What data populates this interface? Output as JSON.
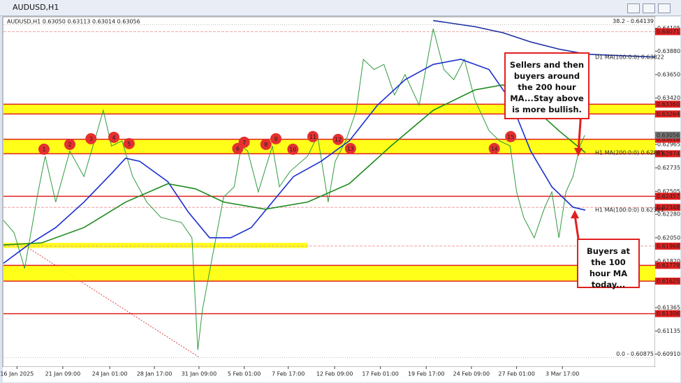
{
  "window_title": "AUDUSD,H1",
  "chart_data": {
    "type": "line",
    "info": "AUDUSD,H1  0.63050 0.63113 0.63014 0.63056",
    "xlim": [
      0,
      111
    ],
    "ylim": [
      0.6079,
      0.6419
    ],
    "xticks": [
      {
        "value": 2.3,
        "label": "16 Jan 2025"
      },
      {
        "value": 10.1,
        "label": "21 Jan 09:00"
      },
      {
        "value": 18.1,
        "label": "24 Jan 01:00"
      },
      {
        "value": 25.7,
        "label": "28 Jan 17:00"
      },
      {
        "value": 33.3,
        "label": "31 Jan 09:00"
      },
      {
        "value": 41,
        "label": "5 Feb 01:00"
      },
      {
        "value": 48.5,
        "label": "7 Feb 17:00"
      },
      {
        "value": 56.4,
        "label": "12 Feb 09:00"
      },
      {
        "value": 64.2,
        "label": "17 Feb 01:00"
      },
      {
        "value": 72,
        "label": "19 Feb 17:00"
      },
      {
        "value": 79.7,
        "label": "24 Feb 09:00"
      },
      {
        "value": 87.4,
        "label": "27 Feb 01:00"
      },
      {
        "value": 95.2,
        "label": "3 Mar 17:00"
      }
    ],
    "yticks": [
      {
        "value": 0.64105,
        "label": "0.64105"
      },
      {
        "value": 0.6388,
        "label": "0.63880"
      },
      {
        "value": 0.6365,
        "label": "0.63650"
      },
      {
        "value": 0.6342,
        "label": "0.63420"
      },
      {
        "value": 0.62965,
        "label": "0.62965"
      },
      {
        "value": 0.62735,
        "label": "0.62735"
      },
      {
        "value": 0.62505,
        "label": "0.62505"
      },
      {
        "value": 0.6228,
        "label": "0.62280"
      },
      {
        "value": 0.6205,
        "label": "0.62050"
      },
      {
        "value": 0.6182,
        "label": "0.61820"
      },
      {
        "value": 0.61365,
        "label": "0.61365"
      },
      {
        "value": 0.61135,
        "label": "0.61135"
      },
      {
        "value": 0.6091,
        "label": "0.60910"
      }
    ],
    "series": [
      {
        "color": "#2f9a3e",
        "x": [
          0,
          1.8,
          3.6,
          5.9,
          7.1,
          8.9,
          11.3,
          13.7,
          15.5,
          17.0,
          18.4,
          20.2,
          22.0,
          24.4,
          26.8,
          30.3,
          32.1,
          33.1,
          33.9,
          35.7,
          37.5,
          39.3,
          40.5,
          41.6,
          43.4,
          45.8,
          47.0,
          48.8,
          51.8,
          53.5,
          55.3,
          56.5,
          58.3,
          60.1,
          61.3,
          63.1,
          64.8,
          66.6,
          68.4,
          70.8,
          73.2,
          75.0,
          76.7,
          78.5,
          80.3,
          82.7,
          84.5,
          86.3,
          87.4,
          88.6,
          90.4,
          92.2,
          93.4,
          94.6,
          95.8,
          97.0,
          98.2,
          99.0
        ],
        "values": [
          0.6222,
          0.621,
          0.6175,
          0.625,
          0.6285,
          0.624,
          0.629,
          0.6265,
          0.63,
          0.633,
          0.6295,
          0.63,
          0.6265,
          0.624,
          0.6225,
          0.622,
          0.6205,
          0.6095,
          0.6135,
          0.619,
          0.6245,
          0.6255,
          0.6295,
          0.629,
          0.625,
          0.6295,
          0.6255,
          0.627,
          0.6285,
          0.6305,
          0.624,
          0.628,
          0.63,
          0.633,
          0.638,
          0.637,
          0.6375,
          0.6345,
          0.6365,
          0.6335,
          0.641,
          0.637,
          0.636,
          0.638,
          0.634,
          0.631,
          0.63,
          0.6295,
          0.625,
          0.6225,
          0.6205,
          0.6235,
          0.625,
          0.6205,
          0.625,
          0.6265,
          0.6295,
          0.63056
        ]
      },
      {
        "name": "H1 MA(100:0:0) 0.62321",
        "color": "#1a2fd0",
        "x": [
          0,
          4.2,
          8.9,
          13.7,
          18.4,
          20.8,
          23.2,
          28.0,
          31.5,
          35.1,
          38.7,
          42.2,
          45.8,
          49.4,
          54.1,
          58.9,
          63.7,
          68.4,
          73.2,
          77.9,
          82.7,
          86.3,
          89.8,
          93.4,
          97.0,
          99.1
        ],
        "values": [
          0.618,
          0.6198,
          0.6215,
          0.624,
          0.6268,
          0.6283,
          0.628,
          0.626,
          0.623,
          0.6205,
          0.6205,
          0.6215,
          0.624,
          0.6265,
          0.628,
          0.63,
          0.6335,
          0.636,
          0.6375,
          0.638,
          0.637,
          0.634,
          0.629,
          0.6255,
          0.6235,
          0.62321
        ]
      },
      {
        "name": "H1 MA(200:0:0) 0.62885",
        "color": "#1d8a1d",
        "x": [
          0,
          6.5,
          13.7,
          20.8,
          28.0,
          32.7,
          37.5,
          44.6,
          51.8,
          58.9,
          66.0,
          73.2,
          80.3,
          85.1,
          89.8,
          94.6,
          99.1
        ],
        "values": [
          0.6198,
          0.62,
          0.6215,
          0.624,
          0.6258,
          0.6253,
          0.624,
          0.6233,
          0.624,
          0.6258,
          0.6295,
          0.633,
          0.635,
          0.6355,
          0.6335,
          0.631,
          0.62885
        ]
      },
      {
        "name": "D1 MA(100:0:0) 0.63822",
        "color": "#1a2fa0",
        "x": [
          73.2,
          80.3,
          85.1,
          89.8,
          94.6,
          99.3,
          111
        ],
        "values": [
          0.6418,
          0.6412,
          0.6406,
          0.6397,
          0.639,
          0.6385,
          0.63822
        ]
      }
    ],
    "zones": [
      {
        "low": 0.63264,
        "high": 0.6336,
        "color": "#ffff00"
      },
      {
        "low": 0.62874,
        "high": 0.63016,
        "color": "#ffff00"
      },
      {
        "low": 0.61625,
        "high": 0.61779,
        "color": "#ffff00"
      },
      {
        "low": 0.6195,
        "high": 0.62,
        "x_end": 51.8,
        "color": "#ffff00"
      }
    ],
    "levels": [
      {
        "value": 0.64071,
        "label": "0.64071",
        "style": "dashed"
      },
      {
        "value": 0.6336,
        "label": "0.63360",
        "style": "solid"
      },
      {
        "value": 0.63264,
        "label": "0.63264",
        "style": "solid"
      },
      {
        "value": 0.63016,
        "label": "0.63016",
        "style": "solid"
      },
      {
        "value": 0.62874,
        "label": "0.62874",
        "style": "solid"
      },
      {
        "value": 0.62457,
        "label": "0.62457",
        "style": "solid"
      },
      {
        "value": 0.62348,
        "label": "0.62348",
        "style": "dashed"
      },
      {
        "value": 0.61968,
        "label": "0.61968",
        "style": "dashed"
      },
      {
        "value": 0.61779,
        "label": "0.61779",
        "style": "solid"
      },
      {
        "value": 0.61625,
        "label": "0.61625",
        "style": "solid"
      },
      {
        "value": 0.61306,
        "label": "0.61306",
        "style": "solid"
      }
    ],
    "current_price": {
      "value": 0.63056,
      "label": "0.63056"
    },
    "fib_levels": [
      {
        "value": 0.64139,
        "label": "38.2 - 0.64139"
      },
      {
        "value": 0.60875,
        "label": "0.0 - 0.60875"
      }
    ],
    "markers": {
      "labels": [
        "1",
        "2",
        "3",
        "4",
        "5",
        "6",
        "7",
        "8",
        "9",
        "10",
        "11",
        "12",
        "13",
        "14",
        "15"
      ],
      "x": [
        6.9,
        11.3,
        14.9,
        18.8,
        21.4,
        39.9,
        41.0,
        44.7,
        46.4,
        49.3,
        52.7,
        57.0,
        59.1,
        83.6,
        86.4
      ],
      "values": [
        0.62918,
        0.62966,
        0.63021,
        0.63035,
        0.62973,
        0.62925,
        0.62987,
        0.62966,
        0.63021,
        0.62918,
        0.63042,
        0.63014,
        0.62925,
        0.62925,
        0.63042
      ]
    },
    "notes": [
      "Sellers and then buyers around the 200 hour MA...Stay above is more bullish.",
      "Buyers at the 100 hour MA today..."
    ]
  }
}
